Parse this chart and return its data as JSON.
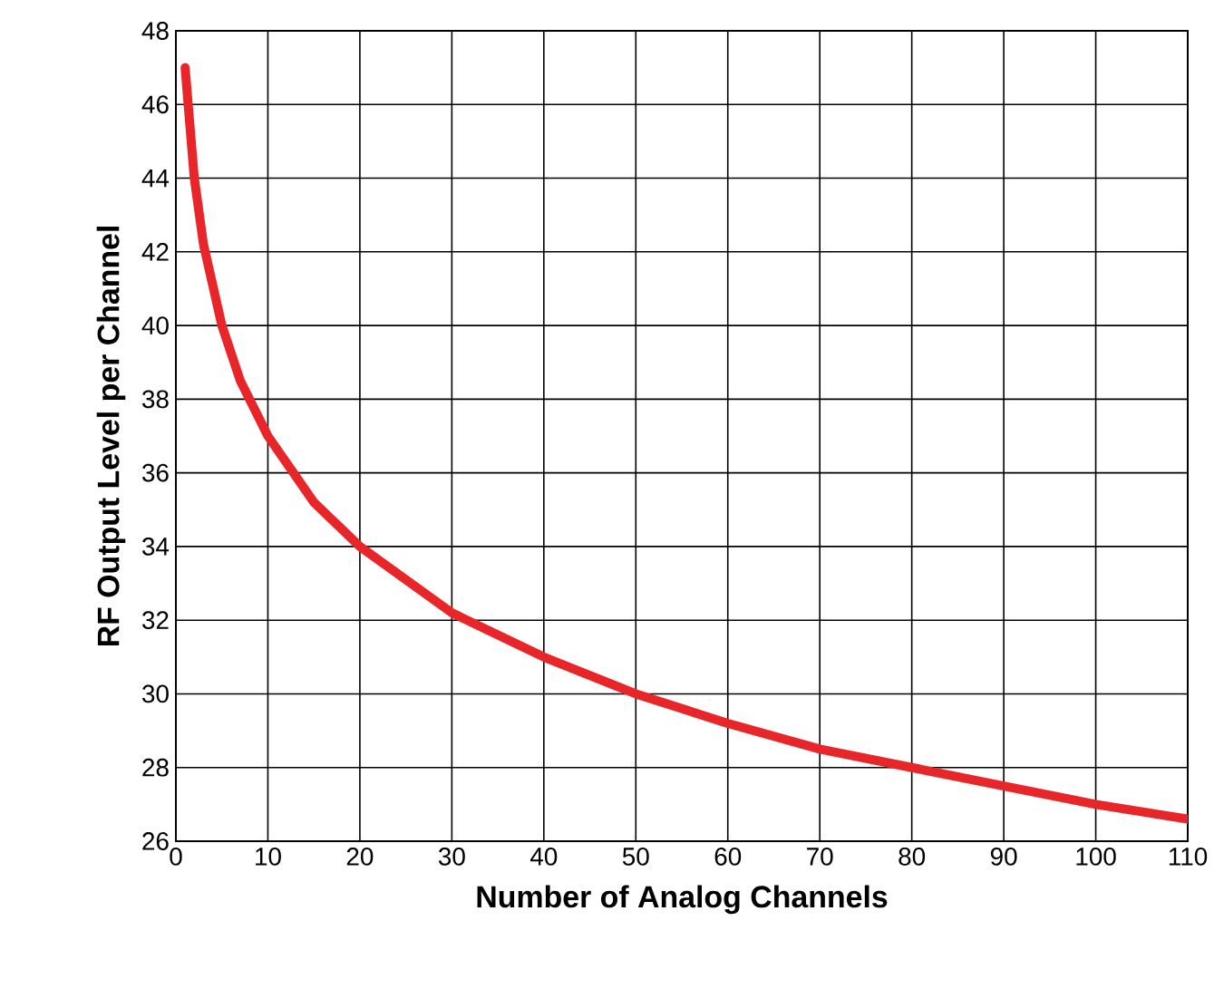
{
  "chart_data": {
    "type": "line",
    "xlabel": "Number of Analog Channels",
    "ylabel": "RF Output Level per Channel",
    "x": [
      1,
      2,
      3,
      5,
      7,
      10,
      15,
      20,
      30,
      40,
      50,
      60,
      70,
      80,
      90,
      100,
      110
    ],
    "series": [
      {
        "color": "#e8262a",
        "values": [
          47,
          44,
          42.2,
          40,
          38.5,
          37,
          35.2,
          34,
          32.2,
          31,
          30,
          29.2,
          28.5,
          28,
          27.5,
          27,
          26.6
        ]
      }
    ],
    "xlim": [
      0,
      110
    ],
    "xticks": [
      0,
      10,
      20,
      30,
      40,
      50,
      60,
      70,
      80,
      90,
      100,
      110
    ],
    "ylim": [
      26,
      48
    ],
    "yticks": [
      26,
      28,
      30,
      32,
      34,
      36,
      38,
      40,
      42,
      44,
      46,
      48
    ],
    "grid": true,
    "marker": "none",
    "line_style": "solid"
  }
}
